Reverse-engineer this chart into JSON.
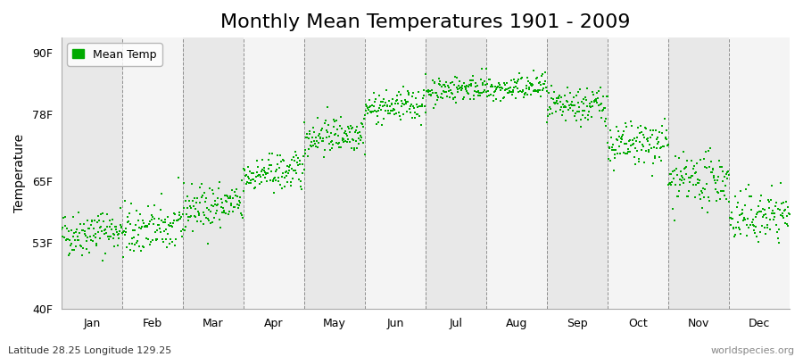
{
  "title": "Monthly Mean Temperatures 1901 - 2009",
  "ylabel": "Temperature",
  "xlabel_months": [
    "Jan",
    "Feb",
    "Mar",
    "Apr",
    "May",
    "Jun",
    "Jul",
    "Aug",
    "Sep",
    "Oct",
    "Nov",
    "Dec"
  ],
  "ytick_labels": [
    "40F",
    "53F",
    "65F",
    "78F",
    "90F"
  ],
  "ytick_values": [
    40,
    53,
    65,
    78,
    90
  ],
  "ylim": [
    40,
    93
  ],
  "dot_color": "#00aa00",
  "dot_size": 3,
  "background_color": "#ffffff",
  "band_color_odd": "#e8e8e8",
  "band_color_even": "#f4f4f4",
  "grid_color": "#666666",
  "legend_label": "Mean Temp",
  "footer_left": "Latitude 28.25 Longitude 129.25",
  "footer_right": "worldspecies.org",
  "monthly_means": [
    54.5,
    55.0,
    59.5,
    66.0,
    73.5,
    79.0,
    82.5,
    82.5,
    79.0,
    71.5,
    64.5,
    57.5
  ],
  "monthly_stds": [
    2.2,
    2.5,
    2.2,
    1.8,
    1.8,
    1.5,
    1.3,
    1.3,
    1.8,
    2.2,
    2.5,
    2.5
  ],
  "trend_per_year": [
    0.01,
    0.01,
    0.01,
    0.01,
    0.01,
    0.01,
    0.01,
    0.01,
    0.01,
    0.01,
    0.01,
    0.01
  ],
  "n_years": 109,
  "start_year": 1901,
  "title_fontsize": 16,
  "axis_fontsize": 10,
  "tick_fontsize": 9,
  "footer_fontsize": 8
}
